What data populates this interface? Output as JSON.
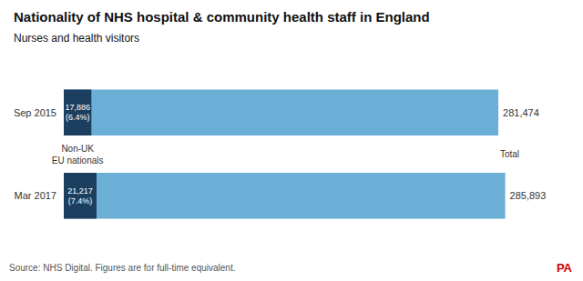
{
  "chart_data": {
    "type": "bar",
    "orientation": "horizontal",
    "title": "Nationality of NHS hospital & community health staff in England",
    "subtitle": "Nurses and health visitors",
    "annotations": [
      "Source: NHS Digital. Figures are for full-time equivalent.",
      "PA"
    ],
    "categories": [
      "Sep 2015",
      "Mar 2017"
    ],
    "series": [
      {
        "name": "Total",
        "color": "#6baed6",
        "values": [
          281474,
          285893
        ],
        "value_labels": [
          "281,474",
          "285,893"
        ]
      },
      {
        "name": "Non-UK\nEU nationals",
        "color": "#1c3f60",
        "values": [
          17886,
          21217
        ],
        "value_labels": [
          "17,886",
          "21,217"
        ],
        "shares": [
          6.4,
          7.4
        ],
        "share_labels": [
          "(6.4%)",
          "(7.4%)"
        ]
      }
    ],
    "xlim": [
      0,
      295000
    ],
    "grid": false,
    "data_labels": true,
    "tick_labels": "y"
  }
}
